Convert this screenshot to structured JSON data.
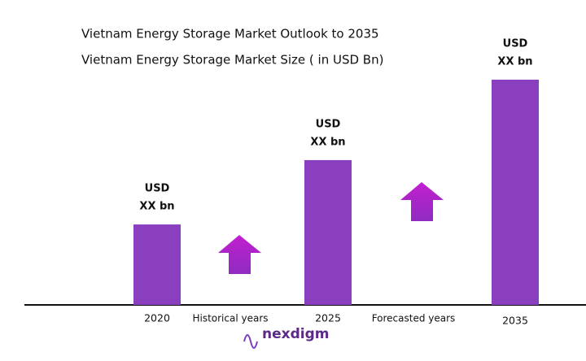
{
  "chart_data": {
    "type": "bar",
    "title": "Vietnam Energy Storage Market Outlook to 2035",
    "subtitle": "Vietnam Energy Storage Market Size  ( in USD Bn)",
    "categories": [
      "2020",
      "2025",
      "2035"
    ],
    "values": [
      1.0,
      1.8,
      2.8
    ],
    "value_labels": [
      [
        "USD",
        "XX bn"
      ],
      [
        "USD",
        "XX bn"
      ],
      [
        "USD",
        "XX bn"
      ]
    ],
    "color": "#8a3fbf",
    "ylim": [
      0,
      2.8
    ],
    "annotations": [
      "Historical years",
      "Forecasted years",
      "nexdigm"
    ]
  }
}
